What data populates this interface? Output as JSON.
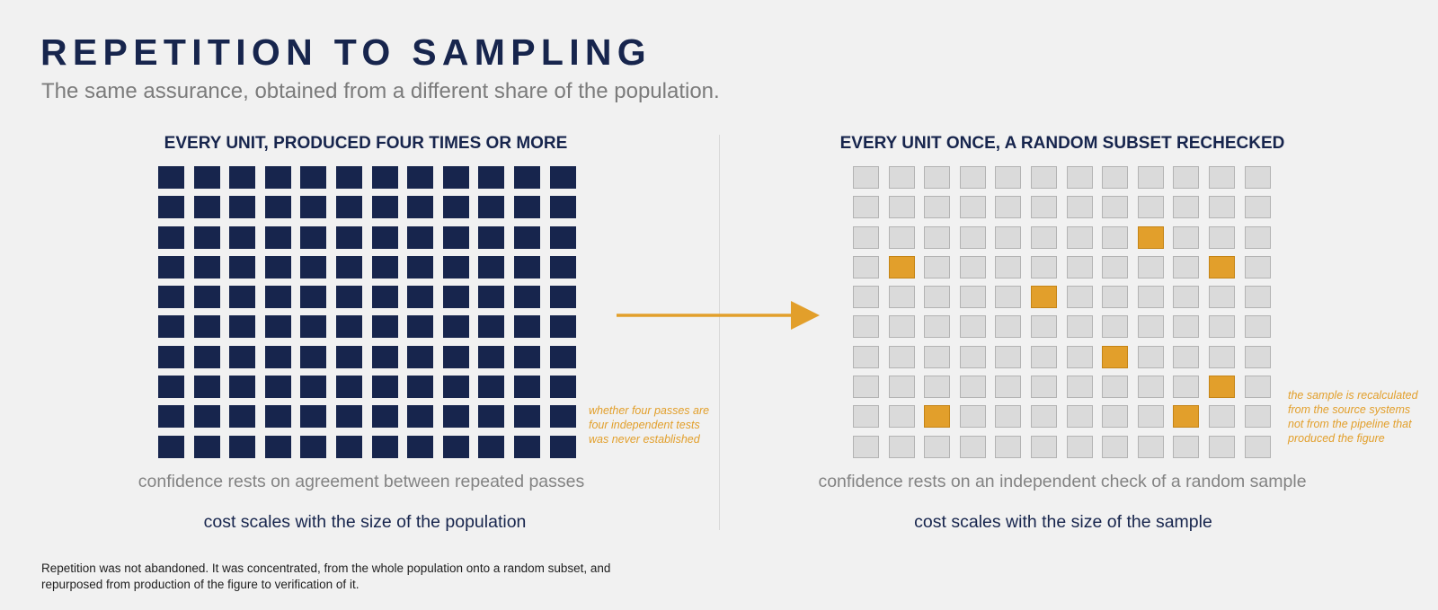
{
  "header": {
    "title": "REPETITION TO SAMPLING",
    "subtitle": "The same assurance, obtained from a different share of the population."
  },
  "left_panel": {
    "heading": "EVERY UNIT, PRODUCED FOUR TIMES OR MORE",
    "grid": {
      "rows": 10,
      "cols": 12
    },
    "note": "whether four passes are four independent tests was never established",
    "caption": "confidence rests on agreement between repeated passes",
    "cost": "cost scales with the size of the population"
  },
  "right_panel": {
    "heading": "EVERY UNIT ONCE, A RANDOM SUBSET RECHECKED",
    "grid": {
      "rows": 10,
      "cols": 12,
      "sampled": [
        [
          2,
          8
        ],
        [
          3,
          1
        ],
        [
          3,
          10
        ],
        [
          4,
          5
        ],
        [
          6,
          7
        ],
        [
          7,
          10
        ],
        [
          8,
          2
        ],
        [
          8,
          9
        ]
      ]
    },
    "note": "the sample is recalculated from the source systems not from the pipeline that produced the figure",
    "caption": "confidence rests on an independent check of a random sample",
    "cost": "cost scales with the size of the sample"
  },
  "footnote": "Repetition was not abandoned. It was concentrated, from the whole population onto a random subset, and repurposed from production of the figure to verification of it.",
  "colors": {
    "navy": "#17254d",
    "accent": "#e29f2b",
    "muted_text": "#838383",
    "cell_empty": "#dadada"
  }
}
